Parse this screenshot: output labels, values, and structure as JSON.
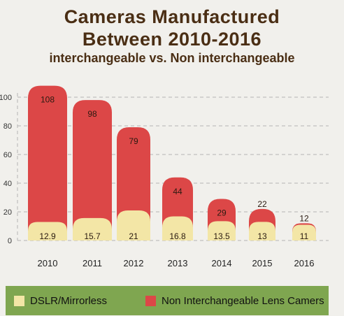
{
  "title": {
    "line1": "Cameras Manufactured",
    "line2": "Between 2010-2016",
    "subtitle": "interchangeable vs. Non interchangeable"
  },
  "colors": {
    "dslr": "#f3e6a6",
    "non_interchangeable": "#dc4747",
    "legend_bg": "#7fa650",
    "background": "#f1f0ec",
    "title": "#4a2e14"
  },
  "legend": [
    {
      "label": "DSLR/Mirrorless",
      "color": "#f3e6a6"
    },
    {
      "label": "Non Interchangeable Lens Camers",
      "color": "#dc4747"
    }
  ],
  "chart_data": {
    "type": "bar",
    "categories": [
      "2010",
      "2011",
      "2012",
      "2013",
      "2014",
      "2015",
      "2016"
    ],
    "series": [
      {
        "name": "DSLR/Mirrorless",
        "values": [
          12.9,
          15.7,
          21,
          16.8,
          13.5,
          13,
          11
        ]
      },
      {
        "name": "Non Interchangeable Lens Camers",
        "values": [
          108,
          98,
          79,
          44,
          29,
          22,
          12
        ]
      }
    ],
    "ylim": [
      0,
      100
    ],
    "yticks": [
      0,
      20,
      40,
      60,
      80,
      100
    ],
    "grid": true,
    "legend_position": "bottom"
  }
}
